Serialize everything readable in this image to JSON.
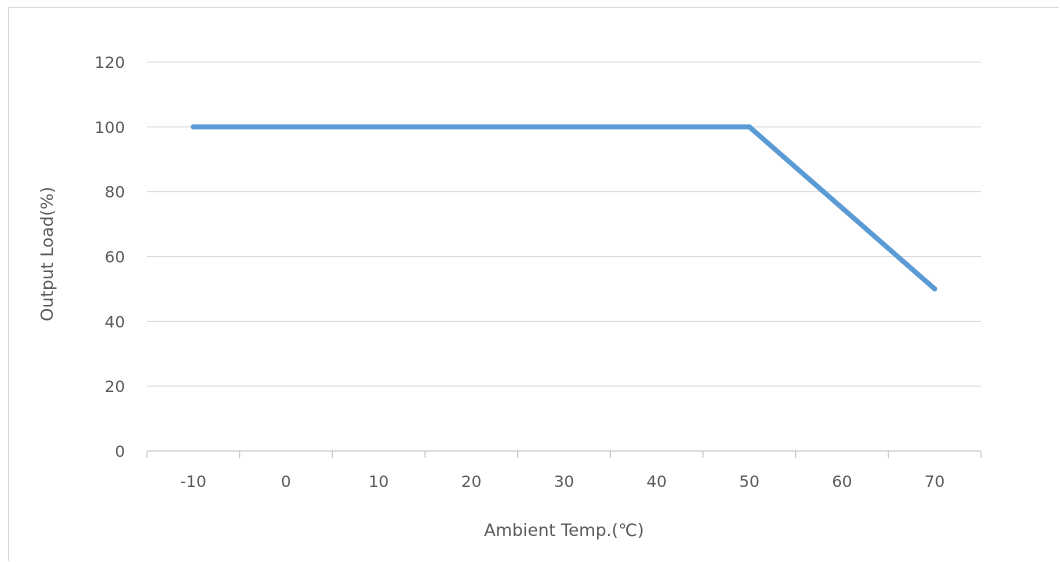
{
  "chart_data": {
    "type": "line",
    "title": "",
    "xlabel": "Ambient Temp.(℃)",
    "ylabel": "Output Load(%)",
    "categories": [
      "-10",
      "0",
      "10",
      "20",
      "30",
      "40",
      "50",
      "60",
      "70"
    ],
    "x": [
      -10,
      50,
      70
    ],
    "series": [
      {
        "values": [
          100,
          100,
          50
        ]
      }
    ],
    "xlim": [
      -15,
      75
    ],
    "ylim": [
      0,
      120
    ],
    "yticks": [
      0,
      20,
      40,
      60,
      80,
      100,
      120
    ],
    "grid": "horizontal",
    "legend": "none",
    "colors": {
      "line": "#5b9bd5",
      "grid": "#d9d9d9",
      "axis": "#bfbfbf",
      "text": "#595959"
    }
  }
}
